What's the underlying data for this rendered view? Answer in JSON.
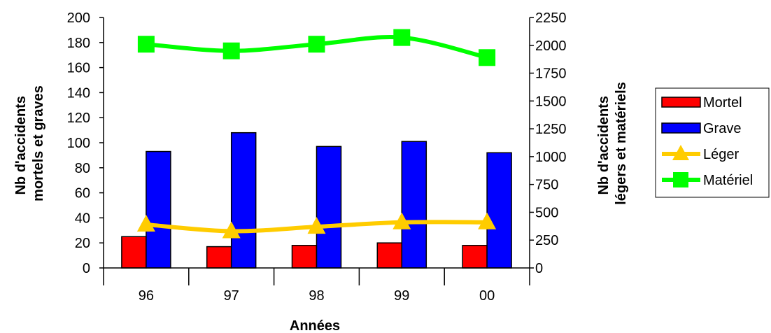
{
  "chart_data": {
    "type": "bar",
    "categories": [
      "96",
      "97",
      "98",
      "99",
      "00"
    ],
    "xlabel": "Années",
    "ylabel_left": [
      "Nb d'accidents",
      "mortels et graves"
    ],
    "ylabel_right": [
      "Nb d'accidents",
      "légers et matériels"
    ],
    "ylim_left": [
      0,
      200
    ],
    "yticks_left": [
      "0",
      "20",
      "40",
      "60",
      "80",
      "100",
      "120",
      "140",
      "160",
      "180",
      "200"
    ],
    "ylim_right": [
      0,
      2250
    ],
    "yticks_right": [
      "0",
      "250",
      "500",
      "750",
      "1000",
      "1250",
      "1500",
      "1750",
      "2000",
      "2250"
    ],
    "grid": false,
    "legend_position": "right",
    "series": [
      {
        "name": "Mortel",
        "type": "bar",
        "axis": "left",
        "color": "#ff0000",
        "values": [
          25,
          17,
          18,
          20,
          18
        ]
      },
      {
        "name": "Grave",
        "type": "bar",
        "axis": "left",
        "color": "#0000ff",
        "values": [
          93,
          108,
          97,
          101,
          92
        ]
      },
      {
        "name": "Léger",
        "type": "line",
        "axis": "right",
        "marker": "triangle",
        "color": "#ffcc00",
        "values": [
          390,
          330,
          370,
          410,
          410
        ]
      },
      {
        "name": "Matériel",
        "type": "line",
        "axis": "right",
        "marker": "square",
        "color": "#00ff00",
        "values": [
          2010,
          1950,
          2010,
          2070,
          1890
        ]
      }
    ]
  }
}
